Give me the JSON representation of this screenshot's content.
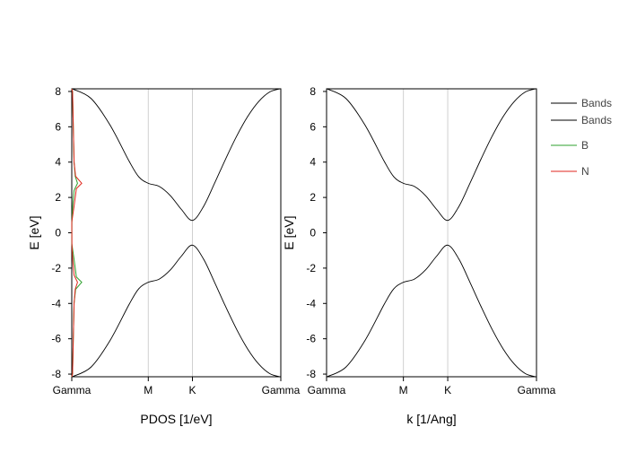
{
  "chart_data": [
    {
      "type": "line",
      "xlabel": "PDOS [1/eV]",
      "ylabel": "E [eV]",
      "ylim": [
        -8.15,
        8.15
      ],
      "yticks": [
        -8,
        -6,
        -4,
        -2,
        0,
        2,
        4,
        6,
        8
      ],
      "xlim": [
        0,
        2.732
      ],
      "xticks": [
        {
          "label": "Gamma",
          "value": 0
        },
        {
          "label": "M",
          "value": 1
        },
        {
          "label": "K",
          "value": 1.577
        },
        {
          "label": "Gamma",
          "value": 2.732
        }
      ],
      "grid": "vertical at M and K",
      "series": [
        {
          "name": "Bands",
          "color": "#000000",
          "kind": "band",
          "x": [
            0,
            0.25,
            0.5,
            0.75,
            0.875,
            1,
            1.144,
            1.289,
            1.433,
            1.577,
            1.721,
            1.866,
            2.01,
            2.154,
            2.299,
            2.443,
            2.587,
            2.732
          ],
          "y": [
            8.16,
            7.61,
            6.1,
            4.05,
            3.17,
            2.8,
            2.62,
            2.1,
            1.32,
            0.7,
            1.48,
            2.8,
            4.17,
            5.46,
            6.58,
            7.43,
            7.97,
            8.16
          ]
        },
        {
          "name": "Bands",
          "color": "#000000",
          "kind": "band",
          "x": [
            0,
            0.25,
            0.5,
            0.75,
            0.875,
            1,
            1.144,
            1.289,
            1.433,
            1.577,
            1.721,
            1.866,
            2.01,
            2.154,
            2.299,
            2.443,
            2.587,
            2.732
          ],
          "y": [
            -8.16,
            -7.61,
            -6.1,
            -4.05,
            -3.17,
            -2.8,
            -2.62,
            -2.1,
            -1.32,
            -0.7,
            -1.48,
            -2.8,
            -4.17,
            -5.46,
            -6.58,
            -7.43,
            -7.97,
            -8.16
          ]
        },
        {
          "name": "B",
          "color": "#2ca02c",
          "kind": "pdos",
          "energy": [
            -8.15,
            -8,
            -6,
            -4,
            -3.2,
            -2.8,
            -2.5,
            -1.5,
            -0.6,
            0.7,
            1.5,
            2.4,
            2.8,
            3.2,
            4,
            6,
            8,
            8.15
          ],
          "pdos": [
            0,
            0.01,
            0.02,
            0.03,
            0.05,
            0.13,
            0.06,
            0.03,
            0,
            0.002,
            0.012,
            0.03,
            0.075,
            0.045,
            0.03,
            0.02,
            0.01,
            0
          ]
        },
        {
          "name": "N",
          "color": "#e0261c",
          "kind": "pdos",
          "energy": [
            -8.15,
            -8,
            -6,
            -4,
            -3.2,
            -2.8,
            -2.4,
            -1.5,
            -0.7,
            0.6,
            1.5,
            2.5,
            2.8,
            3.2,
            4,
            6,
            8,
            8.15
          ],
          "pdos": [
            0,
            0.01,
            0.02,
            0.03,
            0.045,
            0.075,
            0.03,
            0.012,
            0.002,
            0,
            0.03,
            0.06,
            0.13,
            0.05,
            0.03,
            0.02,
            0.01,
            0
          ]
        }
      ]
    },
    {
      "type": "line",
      "xlabel": "k [1/Ang]",
      "ylabel": "E [eV]",
      "ylim": [
        -8.15,
        8.15
      ],
      "yticks": [
        -8,
        -6,
        -4,
        -2,
        0,
        2,
        4,
        6,
        8
      ],
      "xlim": [
        0,
        2.732
      ],
      "xticks": [
        {
          "label": "Gamma",
          "value": 0
        },
        {
          "label": "M",
          "value": 1
        },
        {
          "label": "K",
          "value": 1.577
        },
        {
          "label": "Gamma",
          "value": 2.732
        }
      ],
      "grid": "vertical at M and K",
      "series_from": "same bands as first panel"
    }
  ],
  "legend": {
    "placement": "right",
    "entries": [
      {
        "label": "Bands",
        "color": "#000000"
      },
      {
        "label": "Bands",
        "color": "#000000"
      },
      {
        "label": "B",
        "color": "#2ca02c"
      },
      {
        "label": "N",
        "color": "#e0261c"
      }
    ]
  }
}
